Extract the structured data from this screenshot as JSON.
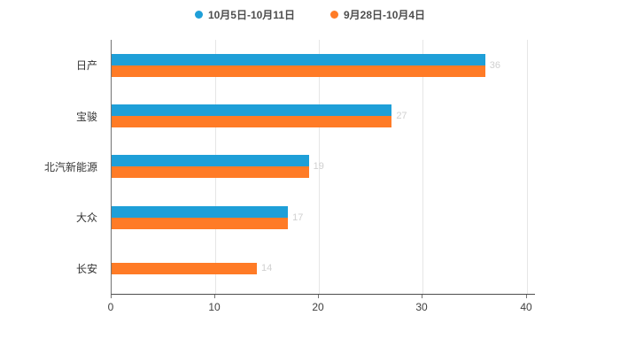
{
  "chart_data": {
    "type": "bar",
    "orientation": "horizontal",
    "title": "",
    "categories": [
      "日产",
      "宝骏",
      "北汽新能源",
      "大众",
      "长安"
    ],
    "series": [
      {
        "name": "10月5日-10月11日",
        "color": "#1E9FD8",
        "values": [
          36,
          27,
          19,
          17,
          null
        ]
      },
      {
        "name": "9月28日-10月4日",
        "color": "#FF7B26",
        "values": [
          36,
          27,
          19,
          17,
          14
        ]
      }
    ],
    "value_labels": [
      36,
      27,
      19,
      17,
      14
    ],
    "xticks": [
      0,
      10,
      20,
      30,
      40
    ],
    "xlim": [
      0,
      40.8
    ],
    "grid": "vertical",
    "legend_position": "top",
    "colors": {
      "week_current": "#1E9FD8",
      "week_previous": "#FF7B26",
      "gridline": "#e6e6e6",
      "axis": "#4d4d4d"
    }
  }
}
